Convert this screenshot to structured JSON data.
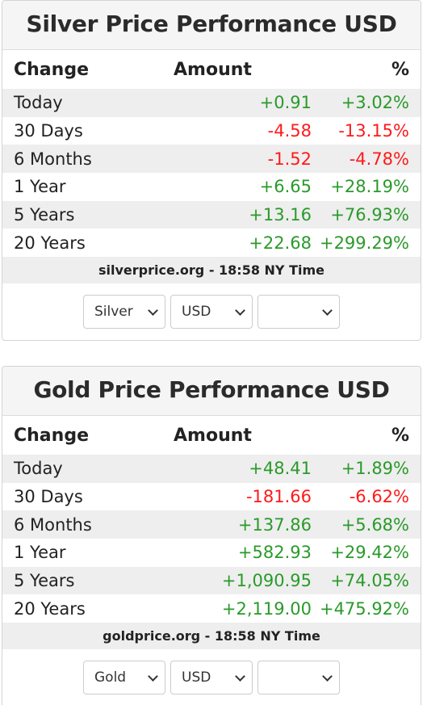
{
  "silver": {
    "title": "Silver Price Performance USD",
    "headers": {
      "change": "Change",
      "amount": "Amount",
      "percent": "%"
    },
    "rows": [
      {
        "period": "Today",
        "amount": "+0.91",
        "percent": "+3.02%"
      },
      {
        "period": "30 Days",
        "amount": "-4.58",
        "percent": "-13.15%"
      },
      {
        "period": "6 Months",
        "amount": "-1.52",
        "percent": "-4.78%"
      },
      {
        "period": "1 Year",
        "amount": "+6.65",
        "percent": "+28.19%"
      },
      {
        "period": "5 Years",
        "amount": "+13.16",
        "percent": "+76.93%"
      },
      {
        "period": "20 Years",
        "amount": "+22.68",
        "percent": "+299.29%"
      }
    ],
    "source": "silverprice.org - 18:58 NY Time",
    "selects": {
      "metal": "Silver",
      "currency": "USD",
      "period": ""
    }
  },
  "gold": {
    "title": "Gold Price Performance USD",
    "headers": {
      "change": "Change",
      "amount": "Amount",
      "percent": "%"
    },
    "rows": [
      {
        "period": "Today",
        "amount": "+48.41",
        "percent": "+1.89%"
      },
      {
        "period": "30 Days",
        "amount": "-181.66",
        "percent": "-6.62%"
      },
      {
        "period": "6 Months",
        "amount": "+137.86",
        "percent": "+5.68%"
      },
      {
        "period": "1 Year",
        "amount": "+582.93",
        "percent": "+29.42%"
      },
      {
        "period": "5 Years",
        "amount": "+1,090.95",
        "percent": "+74.05%"
      },
      {
        "period": "20 Years",
        "amount": "+2,119.00",
        "percent": "+475.92%"
      }
    ],
    "source": "goldprice.org - 18:58 NY Time",
    "selects": {
      "metal": "Gold",
      "currency": "USD",
      "period": ""
    }
  },
  "colors": {
    "positive": "#2a9a2a",
    "negative": "#ff1a1a",
    "row_shade": "#eeeeee"
  }
}
